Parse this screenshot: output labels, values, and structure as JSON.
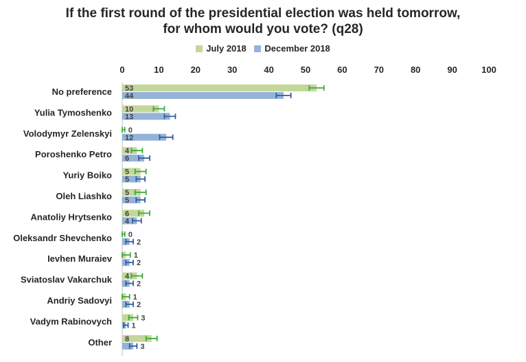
{
  "chart_data": {
    "type": "bar",
    "orientation": "horizontal",
    "title": "If the first round of the presidential election was held tomorrow,",
    "subtitle": "for whom would you vote? (q28)",
    "xlim": [
      0,
      100
    ],
    "xticks": [
      "0",
      "10",
      "20",
      "30",
      "40",
      "50",
      "60",
      "70",
      "80",
      "90",
      "100"
    ],
    "legend_position": "top",
    "grid": false,
    "categories": [
      "No preference",
      "Yulia Tymoshenko",
      "Volodymyr Zelenskyi",
      "Poroshenko Petro",
      "Yuriy Boiko",
      "Oleh Liashko",
      "Anatoliy Hrytsenko",
      "Oleksandr Shevchenko",
      "Ievhen Muraiev",
      "Sviatoslav Vakarchuk",
      "Andriy Sadovyi",
      "Vadym Rabinovych",
      "Other"
    ],
    "series": [
      {
        "name": "July 2018",
        "color": "#c4d79b",
        "error_color": "#3aaa35",
        "values": [
          53,
          10,
          0,
          4,
          5,
          5,
          6,
          0,
          1,
          4,
          1,
          3,
          8
        ],
        "errors": [
          2,
          1.5,
          0.7,
          1.5,
          1.5,
          1.5,
          1.5,
          0.7,
          1.2,
          1.5,
          1.0,
          1.2,
          1.5
        ]
      },
      {
        "name": "December 2018",
        "color": "#95b3d7",
        "error_color": "#2e5d9f",
        "values": [
          44,
          13,
          12,
          6,
          5,
          5,
          4,
          2,
          2,
          2,
          2,
          1,
          3
        ],
        "errors": [
          2,
          1.5,
          1.8,
          1.5,
          1.2,
          1.2,
          1.2,
          1.0,
          1.0,
          1.0,
          1.0,
          0.6,
          1.0
        ]
      }
    ]
  }
}
